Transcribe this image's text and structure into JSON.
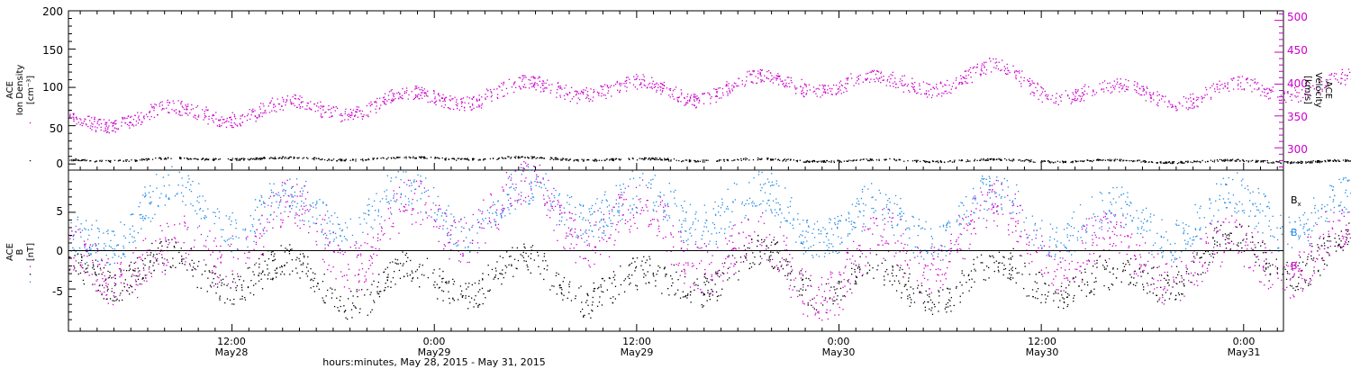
{
  "chart_data": [
    {
      "type": "scatter",
      "panel": "top",
      "ylabel_left": [
        "ACE",
        "Ion Density",
        "[cm⁻³]"
      ],
      "ylabel_right": [
        "ACE",
        "Velocity",
        "[km/s]"
      ],
      "ylim_left": [
        -8,
        200
      ],
      "yticks_left": [
        "0",
        "50",
        "100",
        "150",
        "200"
      ],
      "ylim_right": [
        265,
        515
      ],
      "yticks_right": [
        "300",
        "350",
        "400",
        "450",
        "500"
      ],
      "colors": {
        "density": "#000000",
        "velocity": "#cc00cc"
      },
      "series": [
        {
          "axis": "left",
          "color": "#000000",
          "x": [
            0,
            6,
            12,
            18,
            24,
            30,
            36,
            42,
            48,
            54,
            60,
            66,
            72,
            78,
            84,
            90,
            95.7
          ],
          "y": [
            5,
            6,
            8,
            7,
            8,
            8,
            6,
            6,
            5,
            5,
            5,
            4,
            4,
            4,
            4,
            4,
            4
          ]
        },
        {
          "axis": "right",
          "color": "#cc00cc",
          "x": [
            0,
            3,
            6,
            9,
            12,
            15,
            18,
            21,
            24,
            27,
            30,
            33,
            36,
            39,
            42,
            45,
            48,
            51,
            54,
            57,
            60,
            63,
            66,
            69,
            72,
            75,
            78,
            81,
            84,
            87,
            90,
            93,
            95.7
          ],
          "y": [
            340,
            345,
            350,
            352,
            356,
            360,
            364,
            370,
            378,
            385,
            392,
            395,
            393,
            385,
            398,
            402,
            403,
            398,
            404,
            420,
            395,
            383,
            390,
            378,
            392,
            395,
            400,
            398,
            395,
            402,
            398,
            392,
            390
          ]
        }
      ]
    },
    {
      "type": "scatter",
      "panel": "bottom",
      "ylabel": [
        "ACE",
        "B",
        "[nT]"
      ],
      "ylim": [
        -10.5,
        10.5
      ],
      "yticks": [
        "-5",
        "0",
        "5"
      ],
      "legend": [
        {
          "label": "B",
          "sub": "x",
          "color": "#000000"
        },
        {
          "label": "B",
          "sub": "y",
          "color": "#1e88e5"
        },
        {
          "label": "B",
          "sub": "z",
          "color": "#cc00cc"
        }
      ],
      "series": [
        {
          "label": "Bx",
          "color": "#000000",
          "x": [
            0,
            4,
            8,
            12,
            16,
            20,
            24,
            28,
            32,
            36,
            40,
            44,
            48,
            52,
            56,
            60,
            64,
            68,
            72,
            76,
            80,
            84,
            88,
            92,
            95.7
          ],
          "y": [
            -3,
            -2,
            -2.5,
            -3,
            -3.5,
            -5,
            -4,
            -3,
            -4,
            -5,
            -3,
            -2,
            -4,
            -5,
            -4,
            -3,
            -5,
            -2,
            0,
            -1,
            -0.5,
            -1,
            -2,
            -2,
            -1
          ]
        },
        {
          "label": "By",
          "color": "#1e88e5",
          "x": [
            0,
            4,
            8,
            12,
            16,
            20,
            24,
            28,
            32,
            36,
            40,
            44,
            48,
            52,
            56,
            60,
            64,
            68,
            72,
            76,
            80,
            84,
            88,
            92,
            95.7
          ],
          "y": [
            -4,
            3,
            6,
            5,
            4,
            6,
            5,
            5,
            7,
            5,
            6,
            5,
            4,
            3,
            5,
            4,
            3,
            4,
            5,
            5,
            4,
            3.5,
            4,
            4,
            4
          ]
        },
        {
          "label": "Bz",
          "color": "#cc00cc",
          "x": [
            0,
            4,
            8,
            12,
            16,
            20,
            24,
            28,
            32,
            36,
            40,
            44,
            48,
            52,
            56,
            60,
            64,
            68,
            72,
            76,
            80,
            84,
            88,
            92,
            95.7
          ],
          "y": [
            -2,
            0,
            -3,
            2,
            3,
            1,
            4,
            6,
            5,
            3,
            1,
            -2,
            -3,
            0,
            3,
            2,
            -1,
            -1,
            -2,
            1,
            -2,
            -1,
            1,
            -1,
            0
          ]
        }
      ]
    }
  ],
  "x_axis": {
    "ticks": [
      {
        "hours": 12,
        "time": "12:00",
        "date": "May28"
      },
      {
        "hours": 24,
        "time": "0:00",
        "date": "May29"
      },
      {
        "hours": 36,
        "time": "12:00",
        "date": "May29"
      },
      {
        "hours": 48,
        "time": "0:00",
        "date": "May30"
      },
      {
        "hours": 60,
        "time": "12:00",
        "date": "May30"
      },
      {
        "hours": 72,
        "time": "0:00",
        "date": "May31"
      }
    ],
    "label": "hours:minutes, May 28, 2015 - May 31, 2015"
  }
}
